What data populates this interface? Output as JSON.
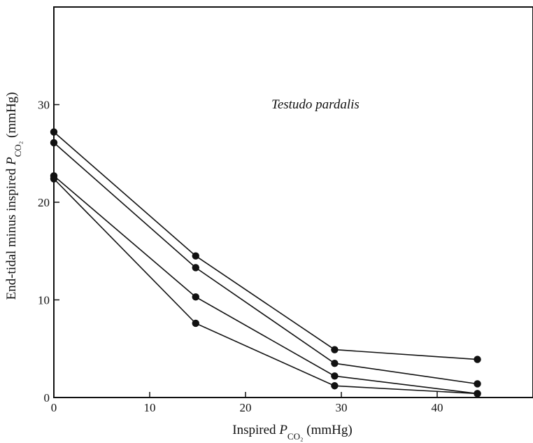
{
  "chart_data": {
    "type": "line",
    "title": "",
    "annotation": "Testudo pardalis",
    "xlabel": {
      "prefix": "Inspired ",
      "var": "P",
      "sub": "CO₂",
      "suffix": " (mmHg)"
    },
    "ylabel": {
      "prefix": "End-tidal minus inspired ",
      "var": "P",
      "sub": "CO₂",
      "suffix": " (mmHg)"
    },
    "xlim": [
      0,
      50
    ],
    "ylim": [
      0,
      40
    ],
    "xticks": [
      0,
      10,
      20,
      30,
      40
    ],
    "yticks": [
      0,
      10,
      20,
      30
    ],
    "x": [
      0,
      14.8,
      29.3,
      44.2
    ],
    "series": [
      {
        "values": [
          27.2,
          14.5,
          4.9,
          3.9
        ]
      },
      {
        "values": [
          26.1,
          13.3,
          3.5,
          1.4
        ]
      },
      {
        "values": [
          22.7,
          10.3,
          2.2,
          0.4
        ]
      },
      {
        "values": [
          22.4,
          7.6,
          1.2,
          0.4
        ]
      }
    ],
    "grid": false,
    "marker": "filled-circle",
    "color": "#111111"
  }
}
